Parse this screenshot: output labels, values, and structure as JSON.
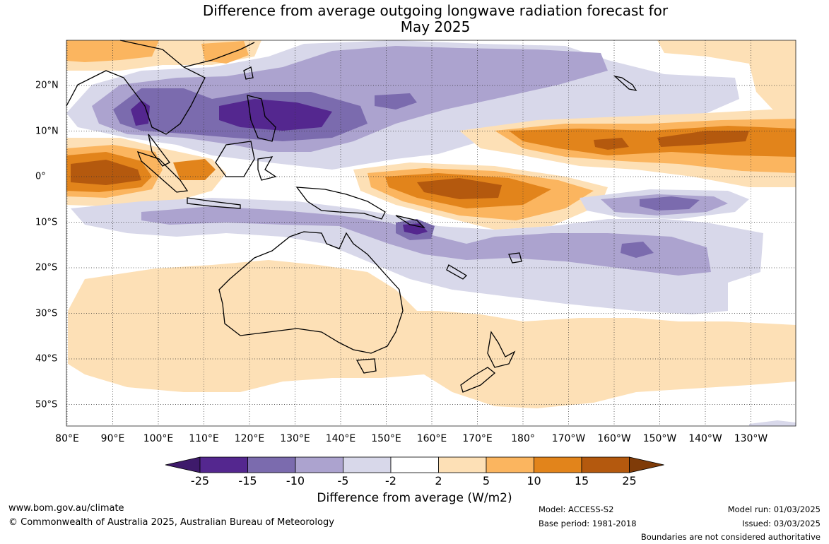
{
  "title": {
    "line1": "Difference from average outgoing longwave radiation forecast for",
    "line2": "May 2025"
  },
  "lon_labels": [
    "80°E",
    "90°E",
    "100°E",
    "110°E",
    "120°E",
    "130°E",
    "140°E",
    "150°E",
    "160°E",
    "170°E",
    "180°",
    "170°W",
    "160°W",
    "150°W",
    "140°W",
    "130°W"
  ],
  "lat_labels": [
    "20°N",
    "10°N",
    "0°",
    "10°S",
    "20°S",
    "30°S",
    "40°S",
    "50°S"
  ],
  "colorbar": {
    "ticks": [
      "-25",
      "-15",
      "-10",
      "-5",
      "-2",
      "2",
      "5",
      "10",
      "15",
      "25"
    ],
    "colors": [
      "#3e1a6b",
      "#54278f",
      "#7b6bae",
      "#aca3cf",
      "#d8d8ea",
      "#ffffff",
      "#fde0b6",
      "#fbb55f",
      "#e2841b",
      "#b4590e",
      "#7f3b08"
    ],
    "title": "Difference from average (W/m2)"
  },
  "footer": {
    "website": "www.bom.gov.au/climate",
    "copyright": "© Commonwealth of Australia 2025, Australian Bureau of Meteorology",
    "model": "Model: ACCESS-S2",
    "base_period": "Base period: 1981-2018",
    "model_run": "Model run: 01/03/2025",
    "issued": "Issued: 03/03/2025",
    "disclaimer": "Boundaries are not considered authoritative"
  }
}
